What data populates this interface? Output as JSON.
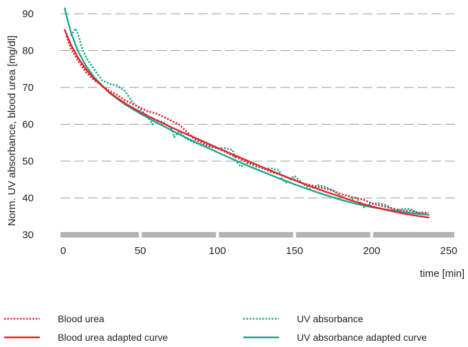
{
  "chart_data": {
    "type": "line",
    "xlabel": "time [min]",
    "ylabel": "Norm. UV absorbance, blood urea [mg/dl]",
    "xlim": [
      0,
      250
    ],
    "ylim": [
      30,
      90
    ],
    "x_ticks": [
      0,
      50,
      100,
      150,
      200,
      250
    ],
    "y_ticks": [
      30,
      40,
      50,
      60,
      70,
      80,
      90
    ],
    "grid": "horizontal dashed",
    "legend_position": "bottom",
    "series": [
      {
        "name": "Blood urea",
        "style": "dotted",
        "color": "#e2232a",
        "x": [
          2,
          5,
          10,
          15,
          20,
          25,
          30,
          35,
          40,
          45,
          50,
          55,
          60,
          65,
          70,
          75,
          80,
          85,
          90,
          95,
          100,
          105,
          110,
          115,
          120,
          125,
          130,
          135,
          140,
          145,
          150,
          155,
          160,
          165,
          170,
          175,
          180,
          185,
          190,
          195,
          200,
          205,
          210,
          215,
          220,
          225,
          230,
          237
        ],
        "y": [
          84,
          80.5,
          77,
          74,
          72,
          70.5,
          69,
          68,
          66.5,
          65.5,
          64.5,
          63.5,
          63,
          62,
          61,
          60,
          58,
          56,
          55,
          54,
          53.5,
          52.5,
          51.5,
          50.5,
          49.5,
          49,
          48,
          47,
          46.5,
          45.5,
          45,
          44,
          43.5,
          43,
          42.5,
          42,
          41,
          40.5,
          40,
          39.5,
          38.5,
          38,
          37.5,
          37,
          36.5,
          36.5,
          36,
          36
        ]
      },
      {
        "name": "Blood urea adapted curve",
        "style": "solid",
        "color": "#e2232a",
        "x": [
          1,
          5,
          10,
          15,
          20,
          30,
          40,
          50,
          60,
          70,
          80,
          90,
          100,
          110,
          120,
          130,
          140,
          150,
          160,
          170,
          180,
          190,
          200,
          210,
          220,
          230,
          237
        ],
        "y": [
          85.6,
          81.6,
          77.8,
          74.8,
          72.4,
          68.6,
          65.7,
          63.3,
          61.2,
          59.2,
          57.3,
          55.5,
          53.6,
          51.8,
          50,
          48.2,
          46.5,
          44.8,
          43.2,
          41.7,
          40.3,
          38.9,
          37.7,
          36.7,
          35.8,
          35.1,
          34.7
        ]
      },
      {
        "name": "UV absorbance",
        "style": "dotted",
        "color": "#1aa68d",
        "x": [
          5,
          8,
          10,
          12,
          15,
          20,
          25,
          30,
          35,
          40,
          45,
          50,
          55,
          58,
          62,
          65,
          70,
          72,
          75,
          80,
          85,
          90,
          95,
          100,
          105,
          110,
          112,
          115,
          120,
          125,
          130,
          135,
          140,
          142,
          145,
          150,
          155,
          160,
          165,
          170,
          175,
          180,
          185,
          190,
          195,
          200,
          205,
          210,
          215,
          220,
          225,
          230,
          237
        ],
        "y": [
          84,
          86,
          84,
          81,
          78,
          75,
          72,
          71,
          70.5,
          69,
          66,
          64,
          62,
          60,
          61,
          60.5,
          59,
          56.5,
          58,
          56,
          55,
          54.5,
          54,
          53.5,
          53.5,
          53,
          50,
          48.5,
          49.5,
          48.5,
          48,
          48,
          47.5,
          45,
          44,
          46,
          44,
          42.5,
          43.5,
          43,
          42,
          40.5,
          39.5,
          40,
          37.5,
          38.5,
          38.5,
          38,
          36.5,
          37,
          37,
          36,
          35.5
        ]
      },
      {
        "name": "UV absorbance adapted curve",
        "style": "solid",
        "color": "#1aa68d",
        "x": [
          1,
          3,
          5,
          8,
          10,
          15,
          20,
          30,
          40,
          50,
          60,
          70,
          80,
          90,
          100,
          110,
          120,
          130,
          140,
          150,
          160,
          170,
          180,
          190,
          200,
          210,
          220,
          230,
          237
        ],
        "y": [
          91.5,
          88,
          85,
          81.5,
          79.5,
          75.7,
          72.8,
          68.5,
          65.4,
          62.9,
          60.6,
          58.4,
          56.3,
          54.3,
          52.4,
          50.5,
          48.7,
          47,
          45.3,
          43.7,
          42.2,
          40.8,
          39.5,
          38.4,
          37.5,
          36.8,
          36.2,
          35.7,
          35.4
        ]
      }
    ]
  }
}
